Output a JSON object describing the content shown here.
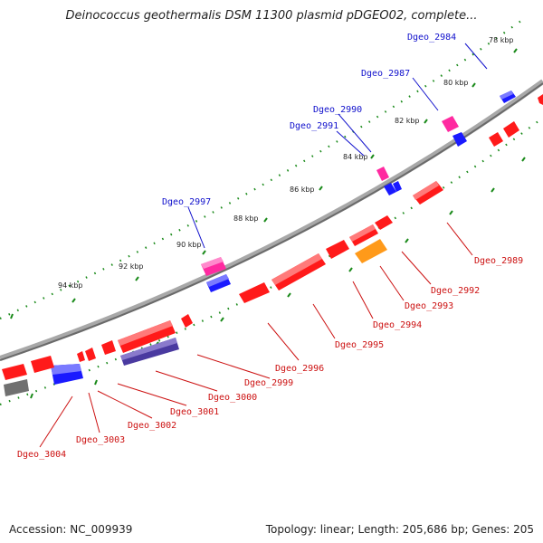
{
  "title": "Deinococcus geothermalis DSM 11300 plasmid pDGEO02, complete...",
  "footer": {
    "accession": "Accession: NC_009939",
    "summary": "Topology: linear; Length: 205,686 bp; Genes: 205"
  },
  "colors": {
    "backbone": "#8a8a8a",
    "tick": "#1a8a1a",
    "forward_label": "#1010cc",
    "reverse_label": "#cc1010",
    "red_gene": "#ff1a1a",
    "blue_gene": "#1a1aff",
    "magenta_gene": "#ff2aa0",
    "orange_gene": "#ff9a1a",
    "purple_gene": "#4a3aa0",
    "gray_gene": "#707070"
  },
  "scale_labels": [
    "78 kbp",
    "80 kbp",
    "82 kbp",
    "84 kbp",
    "86 kbp",
    "88 kbp",
    "90 kbp",
    "92 kbp",
    "94 kbp"
  ],
  "forward_labels": [
    "Dgeo_2984",
    "Dgeo_2987",
    "Dgeo_2990",
    "Dgeo_2991",
    "Dgeo_2997"
  ],
  "reverse_labels": [
    "Dgeo_2989",
    "Dgeo_2992",
    "Dgeo_2993",
    "Dgeo_2994",
    "Dgeo_2995",
    "Dgeo_2996",
    "Dgeo_2999",
    "Dgeo_3000",
    "Dgeo_3001",
    "Dgeo_3002",
    "Dgeo_3003",
    "Dgeo_3004"
  ]
}
